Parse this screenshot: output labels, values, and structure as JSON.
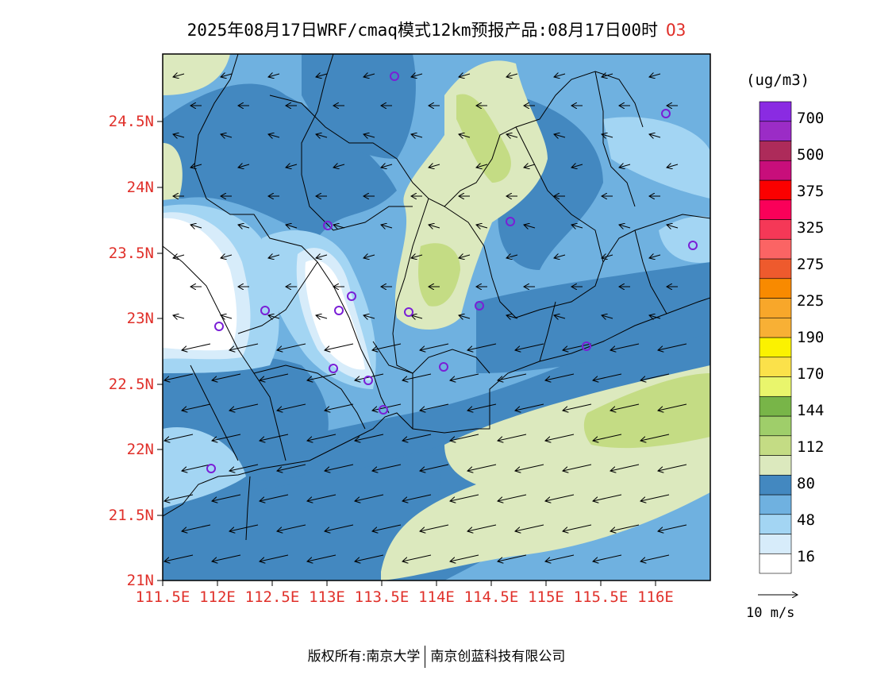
{
  "title": {
    "main": "2025年08月17日WRF/cmaq模式12km预报产品:08月17日00时",
    "variable": "O3"
  },
  "axes": {
    "lat_labels": [
      "24.5N",
      "24N",
      "23.5N",
      "23N",
      "22.5N",
      "22N",
      "21.5N",
      "21N"
    ],
    "lon_labels": [
      "111.5E",
      "112E",
      "112.5E",
      "113E",
      "113.5E",
      "114E",
      "114.5E",
      "115E",
      "115.5E",
      "116E"
    ]
  },
  "legend": {
    "unit": "(ug/m3)",
    "colors": [
      "#ffffff",
      "#d7ecfa",
      "#a3d5f3",
      "#6fb1e0",
      "#4388c0",
      "#dce9be",
      "#c4dc84",
      "#9fce6a",
      "#78b548",
      "#e9f56c",
      "#fbe14a",
      "#fbf200",
      "#f8b035",
      "#f8a72a",
      "#f88a00",
      "#ee5a2d",
      "#fb6464",
      "#f53857",
      "#fa0059",
      "#fb0000",
      "#c80e7b",
      "#ad2b5a",
      "#9b2cc6",
      "#8a2be2"
    ],
    "labels": [
      "16",
      "48",
      "80",
      "112",
      "144",
      "170",
      "190",
      "225",
      "275",
      "325",
      "375",
      "500",
      "700"
    ]
  },
  "stations_label": "",
  "wind_reference": {
    "label": "10 m/s"
  },
  "footer": {
    "left": "版权所有:南京大学",
    "right": "南京创蓝科技有限公司"
  }
}
